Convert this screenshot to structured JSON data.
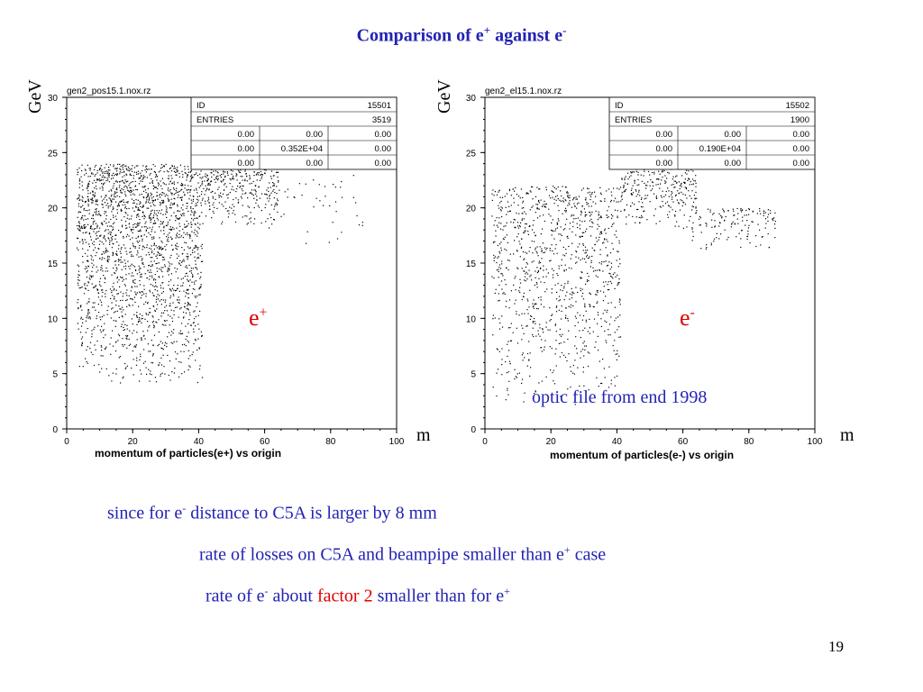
{
  "slide": {
    "title_text": "Comparison of e",
    "title_sup1": "+",
    "title_mid": " against e",
    "title_sup2": "-",
    "page_number": "19"
  },
  "panels": [
    {
      "filename": "gen2_pos15.1.nox.rz",
      "y_unit": "GeV",
      "x_unit": "m",
      "particle_base": "e",
      "particle_sup": "+",
      "stats": {
        "id_label": "ID",
        "id_value": "15501",
        "entries_label": "ENTRIES",
        "entries_value": "3519",
        "rows": [
          [
            "0.00",
            "0.00",
            "0.00"
          ],
          [
            "0.00",
            "0.352E+04",
            "0.00"
          ],
          [
            "0.00",
            "0.00",
            "0.00"
          ]
        ]
      },
      "note": ""
    },
    {
      "filename": "gen2_el15.1.nox.rz",
      "y_unit": "GeV",
      "x_unit": "m",
      "particle_base": "e",
      "particle_sup": "-",
      "stats": {
        "id_label": "ID",
        "id_value": "15502",
        "entries_label": "ENTRIES",
        "entries_value": "1900",
        "rows": [
          [
            "0.00",
            "0.00",
            "0.00"
          ],
          [
            "0.00",
            "0.190E+04",
            "0.00"
          ],
          [
            "0.00",
            "0.00",
            "0.00"
          ]
        ]
      },
      "note": "optic file from end 1998"
    }
  ],
  "chart_data": [
    {
      "type": "scatter",
      "title": "",
      "xlabel": "momentum of particles(e+) vs origin",
      "ylabel": "",
      "xlim": [
        0,
        100
      ],
      "ylim": [
        0,
        30
      ],
      "x_ticks": [
        0,
        20,
        40,
        60,
        80,
        100
      ],
      "y_ticks": [
        0,
        5,
        10,
        15,
        20,
        25,
        30
      ],
      "entries": 3519,
      "point_color": "#000000",
      "regions": [
        {
          "x": [
            3,
            41
          ],
          "y": [
            4,
            24
          ],
          "density": "high"
        },
        {
          "x": [
            41,
            64
          ],
          "y": [
            18,
            25
          ],
          "density": "high"
        },
        {
          "x": [
            63,
            90
          ],
          "y": [
            16,
            23
          ],
          "density": "sparse"
        }
      ]
    },
    {
      "type": "scatter",
      "title": "",
      "xlabel": "momentum of particles(e-) vs origin",
      "ylabel": "",
      "xlim": [
        0,
        100
      ],
      "ylim": [
        0,
        30
      ],
      "x_ticks": [
        0,
        20,
        40,
        60,
        80,
        100
      ],
      "y_ticks": [
        0,
        5,
        10,
        15,
        20,
        25,
        30
      ],
      "entries": 1900,
      "point_color": "#000000",
      "regions": [
        {
          "x": [
            2,
            41
          ],
          "y": [
            2,
            22
          ],
          "density": "medium"
        },
        {
          "x": [
            41,
            64
          ],
          "y": [
            18,
            24
          ],
          "density": "high"
        },
        {
          "x": [
            62,
            88
          ],
          "y": [
            16,
            20
          ],
          "density": "medium"
        }
      ]
    }
  ],
  "bottom_text": {
    "line1_a": "since for e",
    "line1_sup": "-",
    "line1_b": " distance to C5A is larger by 8 mm",
    "line2_a": "rate of losses on C5A and beampipe smaller than e",
    "line2_sup": "+",
    "line2_b": " case",
    "line3_a": "rate of e",
    "line3_sup": "-",
    "line3_b": "  about ",
    "line3_red": "factor 2",
    "line3_c": " smaller than for e",
    "line3_sup2": "+"
  }
}
